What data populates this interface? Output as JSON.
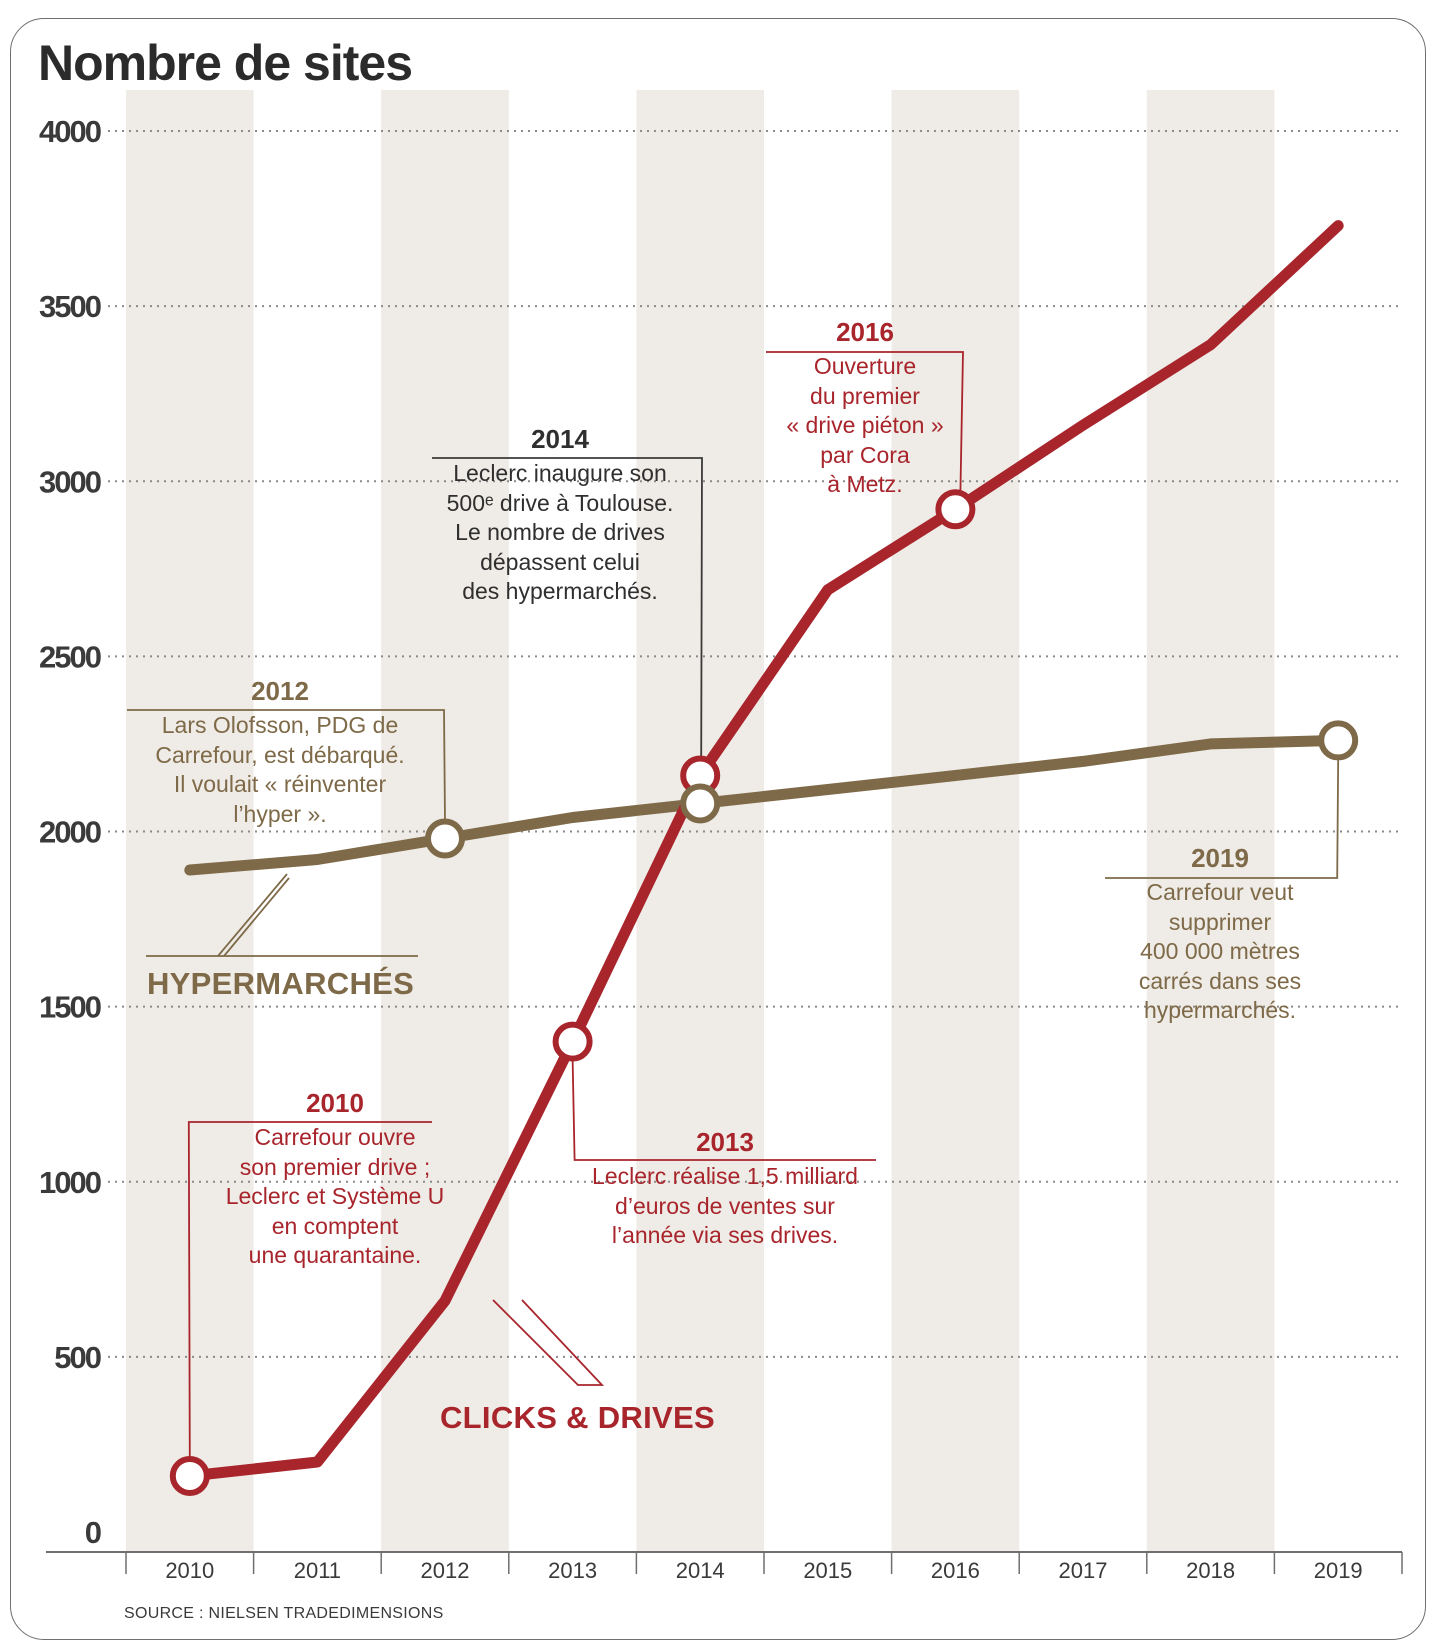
{
  "title": "Nombre de sites",
  "source": "SOURCE : NIELSEN TRADEDIMENSIONS",
  "colors": {
    "drives": "#a8252c",
    "hyper": "#7e6a48",
    "stripe": "#efebe6",
    "grid": "#8a8a8a"
  },
  "chart_data": {
    "type": "line",
    "x": [
      "2010",
      "2011",
      "2012",
      "2013",
      "2014",
      "2015",
      "2016",
      "2017",
      "2018",
      "2019"
    ],
    "ylim": [
      0,
      4000
    ],
    "yticks": [
      "0",
      "500",
      "1000",
      "1500",
      "2000",
      "2500",
      "3000",
      "3500",
      "4000"
    ],
    "grid": true,
    "series": [
      {
        "name": "HYPERMARCHÉS",
        "color": "#7e6a48",
        "values": [
          1890,
          1920,
          1980,
          2040,
          2080,
          2120,
          2160,
          2200,
          2250,
          2260
        ],
        "markers": [
          "2012",
          "2014",
          "2019"
        ]
      },
      {
        "name": "CLICKS & DRIVES",
        "color": "#a8252c",
        "values": [
          160,
          200,
          660,
          1400,
          2160,
          2690,
          2920,
          3160,
          3390,
          3730
        ],
        "markers": [
          "2010",
          "2013",
          "2014",
          "2016"
        ]
      }
    ],
    "annotations": [
      {
        "year": "2010",
        "lines": [
          "Carrefour ouvre",
          "son premier drive ;",
          "Leclerc et Système U",
          "en comptent",
          "une quarantaine."
        ]
      },
      {
        "year": "2012",
        "lines": [
          "Lars Olofsson, PDG de",
          "Carrefour, est débarqué.",
          "Il voulait « réinventer",
          "l’hyper »."
        ]
      },
      {
        "year": "2013",
        "lines": [
          "Leclerc réalise 1,5 milliard",
          "d’euros de ventes sur",
          "l’année via ses drives."
        ]
      },
      {
        "year": "2014",
        "lines": [
          "Leclerc inaugure son",
          "500ᵉ drive à Toulouse.",
          "Le nombre de drives",
          "dépassent celui",
          "des hypermarchés."
        ]
      },
      {
        "year": "2016",
        "lines": [
          "Ouverture",
          "du premier",
          "« drive piéton »",
          "par Cora",
          "à Metz."
        ]
      },
      {
        "year": "2019",
        "lines": [
          "Carrefour veut",
          "supprimer",
          "400 000 mètres",
          "carrés dans ses",
          "hypermarchés."
        ]
      }
    ]
  }
}
